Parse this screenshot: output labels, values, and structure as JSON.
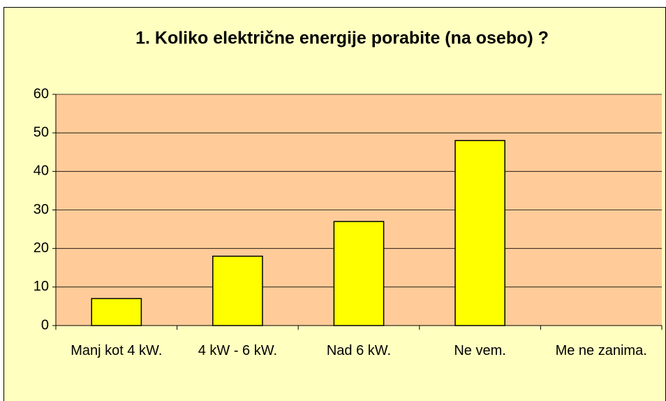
{
  "chart_data": {
    "type": "bar",
    "title": "1. Koliko električne energije porabite (na osebo) ?",
    "categories": [
      "Manj kot 4 kW.",
      "4 kW - 6 kW.",
      "Nad 6 kW.",
      "Ne vem.",
      "Me ne zanima."
    ],
    "values": [
      7,
      18,
      27,
      48,
      0
    ],
    "color": "#ffff00",
    "ylim": [
      0,
      60
    ],
    "yticks": [
      0,
      10,
      20,
      30,
      40,
      50,
      60
    ],
    "grid": true
  }
}
